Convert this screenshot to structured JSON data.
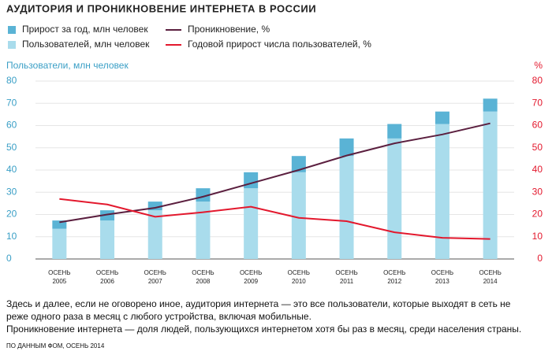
{
  "chart_data": {
    "type": "bar-line",
    "title": "АУДИТОРИЯ И ПРОНИКНОВЕНИЕ ИНТЕРНЕТА В РОССИИ",
    "ylabel": "Пользователи, млн человек",
    "y2label": "%",
    "categories": [
      "ОСЕНЬ 2005",
      "ОСЕНЬ 2006",
      "ОСЕНЬ 2007",
      "ОСЕНЬ 2008",
      "ОСЕНЬ 2009",
      "ОСЕНЬ 2010",
      "ОСЕНЬ 2011",
      "ОСЕНЬ 2012",
      "ОСЕНЬ 2013",
      "ОСЕНЬ 2014"
    ],
    "series": [
      {
        "name": "Пользователей, млн человек",
        "type": "bar",
        "color": "#a9dcec",
        "values": [
          13.6,
          17.3,
          21.9,
          25.8,
          31.8,
          39,
          46.3,
          54.2,
          60.7,
          66.3
        ]
      },
      {
        "name": "Прирост за год, млн человек",
        "type": "bar",
        "color": "#5ab3d5",
        "values": [
          3.7,
          4.6,
          3.9,
          6.0,
          7.2,
          7.3,
          7.9,
          6.5,
          5.6,
          5.8
        ]
      },
      {
        "name": "Проникновение, %",
        "type": "line",
        "axis": "y2",
        "color": "#5b1f3f",
        "values": [
          16.5,
          20,
          23,
          28,
          34,
          40,
          46.5,
          52,
          56,
          61
        ]
      },
      {
        "name": "Годовой прирост числа пользователей, %",
        "type": "line",
        "axis": "y2",
        "color": "#e3182d",
        "values": [
          27,
          24.5,
          19,
          21,
          23.5,
          18.5,
          17,
          12,
          9.5,
          9
        ]
      }
    ],
    "ylim": [
      0,
      80
    ],
    "yticks": [
      0,
      10,
      20,
      30,
      40,
      50,
      60,
      70,
      80
    ],
    "y2lim": [
      0,
      80
    ],
    "y2ticks": [
      0,
      10,
      20,
      30,
      40,
      50,
      60,
      70,
      80
    ],
    "grid": true,
    "notes": [
      "Здесь и далее, если не оговорено иное, аудитория интернета — это все пользователи, которые выходят в сеть не реже одного раза в месяц с любого устройства, включая мобильные.",
      "Проникновение интернета — доля людей, пользующихся интернетом хотя бы раз в месяц, среди населения страны."
    ],
    "source": "ПО ДАННЫМ ФОМ, ОСЕНЬ 2014"
  }
}
